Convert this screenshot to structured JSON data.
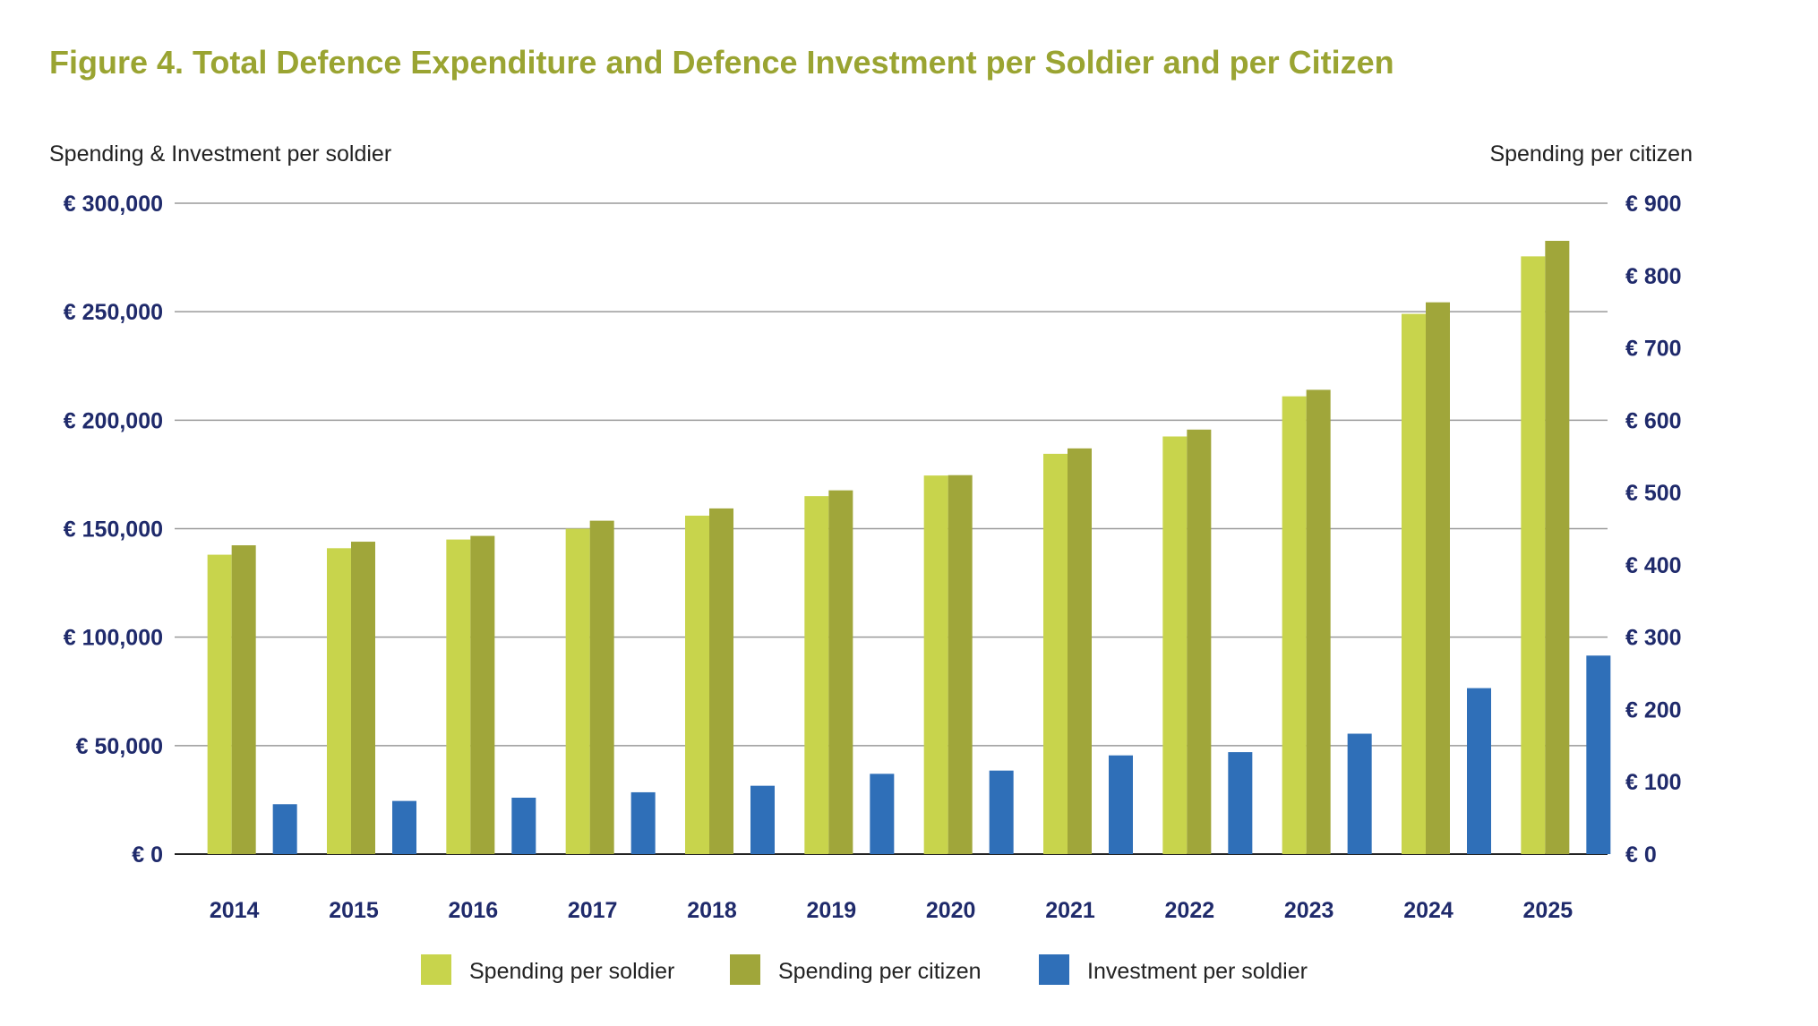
{
  "chart_data": {
    "type": "bar",
    "title": "Figure 4. Total Defence Expenditure and Defence Investment per Soldier and per Citizen",
    "left_axis_label": "Spending & Investment per soldier",
    "right_axis_label": "Spending per citizen",
    "categories": [
      "2014",
      "2015",
      "2016",
      "2017",
      "2018",
      "2019",
      "2020",
      "2021",
      "2022",
      "2023",
      "2024",
      "2025"
    ],
    "left_axis": {
      "range": [
        0,
        300000
      ],
      "ticks": [
        "€ 0",
        "€ 50,000",
        "€ 100,000",
        "€ 150,000",
        "€ 200,000",
        "€ 250,000",
        "€ 300,000"
      ]
    },
    "right_axis": {
      "range": [
        0,
        900
      ],
      "ticks": [
        "€ 0",
        "€ 100",
        "€ 200",
        "€ 300",
        "€ 400",
        "€ 500",
        "€ 600",
        "€ 700",
        "€ 800",
        "€ 900"
      ]
    },
    "series": [
      {
        "name": "Spending per soldier",
        "axis": "left",
        "color": "#c8d44c",
        "values": [
          138000,
          141000,
          145000,
          150000,
          156000,
          165000,
          174500,
          184500,
          192500,
          211000,
          249000,
          275500
        ]
      },
      {
        "name": "Spending per citizen",
        "axis": "right",
        "color": "#a0a63a",
        "values": [
          427,
          432,
          440,
          461,
          478,
          503,
          524,
          561,
          587,
          642,
          763,
          848
        ]
      },
      {
        "name": "Investment per soldier",
        "axis": "left",
        "color": "#2f6fb8",
        "values": [
          23000,
          24500,
          26000,
          28500,
          31500,
          37000,
          38500,
          45500,
          47000,
          55500,
          76500,
          91500
        ]
      }
    ],
    "grid": true,
    "legend_position": "bottom"
  },
  "colors": {
    "title": "#9aa432",
    "axis_text": "#1f2a6b",
    "label_text": "#222222",
    "grid": "#9a9a9a"
  }
}
